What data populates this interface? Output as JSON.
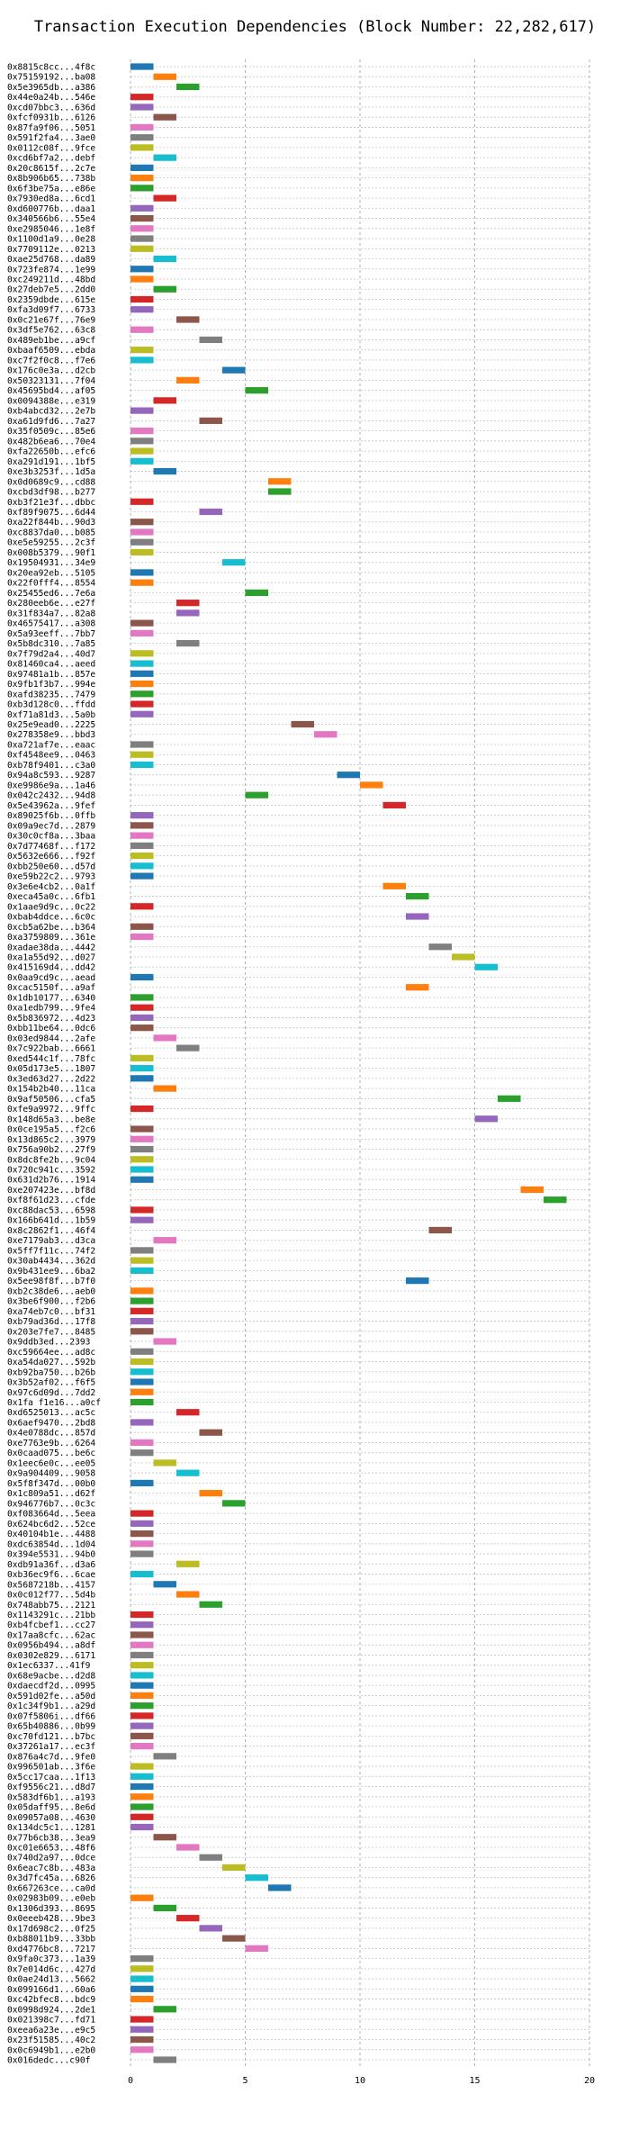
{
  "chart_data": {
    "type": "timeline",
    "title": "Transaction Execution Dependencies (Block Number: 22,282,617)",
    "xlim": [
      0,
      20
    ],
    "x_ticks": [
      0,
      5,
      10,
      15,
      20
    ],
    "grid": true,
    "palette": [
      "#1f77b4",
      "#ff7f0e",
      "#2ca02c",
      "#d62728",
      "#9467bd",
      "#8c564b",
      "#e377c2",
      "#7f7f7f",
      "#bcbd22",
      "#17becf"
    ],
    "rows": [
      {
        "label": "0x8815c8cc...4f8c",
        "start": 0,
        "end": 1
      },
      {
        "label": "0x75159192...ba08",
        "start": 1,
        "end": 2
      },
      {
        "label": "0x5e3965db...a386",
        "start": 2,
        "end": 3
      },
      {
        "label": "0x44e0a24b...546e",
        "start": 0,
        "end": 1
      },
      {
        "label": "0xcd07bbc3...636d",
        "start": 0,
        "end": 1
      },
      {
        "label": "0xfcf0931b...6126",
        "start": 1,
        "end": 2
      },
      {
        "label": "0x87fa9f06...5051",
        "start": 0,
        "end": 1
      },
      {
        "label": "0x591f2fa4...3ae0",
        "start": 0,
        "end": 1
      },
      {
        "label": "0x0112c08f...9fce",
        "start": 0,
        "end": 1
      },
      {
        "label": "0xcd6bf7a2...debf",
        "start": 1,
        "end": 2
      },
      {
        "label": "0x20c8615f...2c7e",
        "start": 0,
        "end": 1
      },
      {
        "label": "0x8b906b65...738b",
        "start": 0,
        "end": 1
      },
      {
        "label": "0x6f3be75a...e86e",
        "start": 0,
        "end": 1
      },
      {
        "label": "0x7930ed8a...6cd1",
        "start": 1,
        "end": 2
      },
      {
        "label": "0xd600776b...daa1",
        "start": 0,
        "end": 1
      },
      {
        "label": "0x340566b6...55e4",
        "start": 0,
        "end": 1
      },
      {
        "label": "0xe2985046...1e8f",
        "start": 0,
        "end": 1
      },
      {
        "label": "0x1100d1a9...0e28",
        "start": 0,
        "end": 1
      },
      {
        "label": "0x7709112e...0213",
        "start": 0,
        "end": 1
      },
      {
        "label": "0xae25d768...da89",
        "start": 1,
        "end": 2
      },
      {
        "label": "0x723fe874...1e99",
        "start": 0,
        "end": 1
      },
      {
        "label": "0xc249211d...48bd",
        "start": 0,
        "end": 1
      },
      {
        "label": "0x27deb7e5...2dd0",
        "start": 1,
        "end": 2
      },
      {
        "label": "0x2359dbde...615e",
        "start": 0,
        "end": 1
      },
      {
        "label": "0xfa3d09f7...6733",
        "start": 0,
        "end": 1
      },
      {
        "label": "0x0c21e67f...76e9",
        "start": 2,
        "end": 3
      },
      {
        "label": "0x3df5e762...63c8",
        "start": 0,
        "end": 1
      },
      {
        "label": "0x489eb1be...a9cf",
        "start": 3,
        "end": 4
      },
      {
        "label": "0xbaaf6509...ebda",
        "start": 0,
        "end": 1
      },
      {
        "label": "0xc7f2f0c8...f7e6",
        "start": 0,
        "end": 1
      },
      {
        "label": "0x176c0e3a...d2cb",
        "start": 4,
        "end": 5
      },
      {
        "label": "0x50323131...7f04",
        "start": 2,
        "end": 3
      },
      {
        "label": "0x45695bd4...af05",
        "start": 5,
        "end": 6
      },
      {
        "label": "0x0094388e...e319",
        "start": 1,
        "end": 2
      },
      {
        "label": "0xb4abcd32...2e7b",
        "start": 0,
        "end": 1
      },
      {
        "label": "0xa61d9fd6...7a27",
        "start": 3,
        "end": 4
      },
      {
        "label": "0x35f0509c...85e6",
        "start": 0,
        "end": 1
      },
      {
        "label": "0x482b6ea6...70e4",
        "start": 0,
        "end": 1
      },
      {
        "label": "0xfa22650b...efc6",
        "start": 0,
        "end": 1
      },
      {
        "label": "0xa291d191...1bf5",
        "start": 0,
        "end": 1
      },
      {
        "label": "0xe3b3253f...1d5a",
        "start": 1,
        "end": 2
      },
      {
        "label": "0x0d0689c9...cd88",
        "start": 6,
        "end": 7
      },
      {
        "label": "0xcbd3df98...b277",
        "start": 6,
        "end": 7
      },
      {
        "label": "0xb3f21e3f...dbbc",
        "start": 0,
        "end": 1
      },
      {
        "label": "0xf89f9075...6d44",
        "start": 3,
        "end": 4
      },
      {
        "label": "0xa22f844b...90d3",
        "start": 0,
        "end": 1
      },
      {
        "label": "0xc8837da0...b085",
        "start": 0,
        "end": 1
      },
      {
        "label": "0xe5e59255...2c3f",
        "start": 0,
        "end": 1
      },
      {
        "label": "0x008b5379...90f1",
        "start": 0,
        "end": 1
      },
      {
        "label": "0x19504931...34e9",
        "start": 4,
        "end": 5
      },
      {
        "label": "0x20ea92eb...5105",
        "start": 0,
        "end": 1
      },
      {
        "label": "0x22f0fff4...8554",
        "start": 0,
        "end": 1
      },
      {
        "label": "0x25455ed6...7e6a",
        "start": 5,
        "end": 6
      },
      {
        "label": "0x280eeb6e...e27f",
        "start": 2,
        "end": 3
      },
      {
        "label": "0x31f834a7...82a8",
        "start": 2,
        "end": 3
      },
      {
        "label": "0x46575417...a308",
        "start": 0,
        "end": 1
      },
      {
        "label": "0x5a93eeff...7bb7",
        "start": 0,
        "end": 1
      },
      {
        "label": "0x5b8dc310...7a85",
        "start": 2,
        "end": 3
      },
      {
        "label": "0x7f79d2a4...40d7",
        "start": 0,
        "end": 1
      },
      {
        "label": "0x81460ca4...aeed",
        "start": 0,
        "end": 1
      },
      {
        "label": "0x97481a1b...857e",
        "start": 0,
        "end": 1
      },
      {
        "label": "0x9fb1f3b7...994e",
        "start": 0,
        "end": 1
      },
      {
        "label": "0xafd38235...7479",
        "start": 0,
        "end": 1
      },
      {
        "label": "0xb3d128c0...ffdd",
        "start": 0,
        "end": 1
      },
      {
        "label": "0xf71a81d3...5a0b",
        "start": 0,
        "end": 1
      },
      {
        "label": "0x25e9ead0...2225",
        "start": 7,
        "end": 8
      },
      {
        "label": "0x278358e9...bbd3",
        "start": 8,
        "end": 9
      },
      {
        "label": "0xa721af7e...eaac",
        "start": 0,
        "end": 1
      },
      {
        "label": "0xf4548ee9...0463",
        "start": 0,
        "end": 1
      },
      {
        "label": "0xb78f9401...c3a0",
        "start": 0,
        "end": 1
      },
      {
        "label": "0x94a8c593...9287",
        "start": 9,
        "end": 10
      },
      {
        "label": "0xe9986e9a...1a46",
        "start": 10,
        "end": 11
      },
      {
        "label": "0x042c2432...94d8",
        "start": 5,
        "end": 6
      },
      {
        "label": "0x5e43962a...9fef",
        "start": 11,
        "end": 12
      },
      {
        "label": "0x89025f6b...0ffb",
        "start": 0,
        "end": 1
      },
      {
        "label": "0x09a9ec7d...2879",
        "start": 0,
        "end": 1
      },
      {
        "label": "0x30c0cf8a...3baa",
        "start": 0,
        "end": 1
      },
      {
        "label": "0x7d77468f...f172",
        "start": 0,
        "end": 1
      },
      {
        "label": "0x5632e666...f92f",
        "start": 0,
        "end": 1
      },
      {
        "label": "0xbb250e60...d57d",
        "start": 0,
        "end": 1
      },
      {
        "label": "0xe59b22c2...9793",
        "start": 0,
        "end": 1
      },
      {
        "label": "0x3e6e4cb2...0a1f",
        "start": 11,
        "end": 12
      },
      {
        "label": "0xeca45a0c...6fb1",
        "start": 12,
        "end": 13
      },
      {
        "label": "0x1aae9d9c...0c22",
        "start": 0,
        "end": 1
      },
      {
        "label": "0xbab4ddce...6c0c",
        "start": 12,
        "end": 13
      },
      {
        "label": "0xcb5a62be...b364",
        "start": 0,
        "end": 1
      },
      {
        "label": "0xa3759809...361e",
        "start": 0,
        "end": 1
      },
      {
        "label": "0xadae38da...4442",
        "start": 13,
        "end": 14
      },
      {
        "label": "0xa1a55d92...d027",
        "start": 14,
        "end": 15
      },
      {
        "label": "0x415169d4...dd42",
        "start": 15,
        "end": 16
      },
      {
        "label": "0x0aa9cd9c...aead",
        "start": 0,
        "end": 1
      },
      {
        "label": "0xcac5150f...a9af",
        "start": 12,
        "end": 13
      },
      {
        "label": "0x1db10177...6340",
        "start": 0,
        "end": 1
      },
      {
        "label": "0xa1edb799...9fe4",
        "start": 0,
        "end": 1
      },
      {
        "label": "0x5b836972...4d23",
        "start": 0,
        "end": 1
      },
      {
        "label": "0xbb11be64...0dc6",
        "start": 0,
        "end": 1
      },
      {
        "label": "0x03ed9844...2afe",
        "start": 1,
        "end": 2
      },
      {
        "label": "0x7c922bab...6661",
        "start": 2,
        "end": 3
      },
      {
        "label": "0xed544c1f...78fc",
        "start": 0,
        "end": 1
      },
      {
        "label": "0x05d173e5...1807",
        "start": 0,
        "end": 1
      },
      {
        "label": "0x3ed63d27...2d22",
        "start": 0,
        "end": 1
      },
      {
        "label": "0x154b2b40...11ca",
        "start": 1,
        "end": 2
      },
      {
        "label": "0x9af50506...cfa5",
        "start": 16,
        "end": 17
      },
      {
        "label": "0xfe9a9972...9ffc",
        "start": 0,
        "end": 1
      },
      {
        "label": "0x148d65a3...be8e",
        "start": 15,
        "end": 16
      },
      {
        "label": "0x0ce195a5...f2c6",
        "start": 0,
        "end": 1
      },
      {
        "label": "0x13d865c2...3979",
        "start": 0,
        "end": 1
      },
      {
        "label": "0x756a90b2...27f9",
        "start": 0,
        "end": 1
      },
      {
        "label": "0x8dc8fe2b...9c04",
        "start": 0,
        "end": 1
      },
      {
        "label": "0x720c941c...3592",
        "start": 0,
        "end": 1
      },
      {
        "label": "0x631d2b76...1914",
        "start": 0,
        "end": 1
      },
      {
        "label": "0xe207423e...bf8d",
        "start": 17,
        "end": 18
      },
      {
        "label": "0xf8f61d23...cfde",
        "start": 18,
        "end": 19
      },
      {
        "label": "0xc88dac53...6598",
        "start": 0,
        "end": 1
      },
      {
        "label": "0x166b641d...1b59",
        "start": 0,
        "end": 1
      },
      {
        "label": "0x8c2862f1...46f4",
        "start": 13,
        "end": 14
      },
      {
        "label": "0xe7179ab3...d3ca",
        "start": 1,
        "end": 2
      },
      {
        "label": "0x5ff7f11c...74f2",
        "start": 0,
        "end": 1
      },
      {
        "label": "0x30ab4434...362d",
        "start": 0,
        "end": 1
      },
      {
        "label": "0x9b431ee9...6ba2",
        "start": 0,
        "end": 1
      },
      {
        "label": "0x5ee98f8f...b7f0",
        "start": 12,
        "end": 13
      },
      {
        "label": "0xb2c38de6...aeb0",
        "start": 0,
        "end": 1
      },
      {
        "label": "0x3be6f900...f2b6",
        "start": 0,
        "end": 1
      },
      {
        "label": "0xa74eb7c0...bf31",
        "start": 0,
        "end": 1
      },
      {
        "label": "0xb79ad36d...17f8",
        "start": 0,
        "end": 1
      },
      {
        "label": "0x203e7fe7...8485",
        "start": 0,
        "end": 1
      },
      {
        "label": "0x9ddb3ed...2393",
        "start": 1,
        "end": 2
      },
      {
        "label": "0xc59664ee...ad8c",
        "start": 0,
        "end": 1
      },
      {
        "label": "0xa54da027...592b",
        "start": 0,
        "end": 1
      },
      {
        "label": "0xb92ba750...b26b",
        "start": 0,
        "end": 1
      },
      {
        "label": "0x3b52af02...f6f5",
        "start": 0,
        "end": 1
      },
      {
        "label": "0x97c6d09d...7dd2",
        "start": 0,
        "end": 1
      },
      {
        "label": "0x1fa f1e16...a0cf",
        "start": 0,
        "end": 1
      },
      {
        "label": "0xd6525013...ac5c",
        "start": 2,
        "end": 3
      },
      {
        "label": "0x6aef9470...2bd8",
        "start": 0,
        "end": 1
      },
      {
        "label": "0x4e0788dc...857d",
        "start": 3,
        "end": 4
      },
      {
        "label": "0xe7763e9b...6264",
        "start": 0,
        "end": 1
      },
      {
        "label": "0x0caad075...be6c",
        "start": 0,
        "end": 1
      },
      {
        "label": "0x1eec6e0c...ee05",
        "start": 1,
        "end": 2
      },
      {
        "label": "0x9a904409...9058",
        "start": 2,
        "end": 3
      },
      {
        "label": "0x5f8f347d...00b0",
        "start": 0,
        "end": 1
      },
      {
        "label": "0x1c809a51...d62f",
        "start": 3,
        "end": 4
      },
      {
        "label": "0x946776b7...0c3c",
        "start": 4,
        "end": 5
      },
      {
        "label": "0xf083664d...5eea",
        "start": 0,
        "end": 1
      },
      {
        "label": "0x624bc6d2...52ce",
        "start": 0,
        "end": 1
      },
      {
        "label": "0x40104b1e...4488",
        "start": 0,
        "end": 1
      },
      {
        "label": "0xdc63854d...1d04",
        "start": 0,
        "end": 1
      },
      {
        "label": "0x394e5531...94b0",
        "start": 0,
        "end": 1
      },
      {
        "label": "0xdb91a36f...d3a6",
        "start": 2,
        "end": 3
      },
      {
        "label": "0xb36ec9f6...6cae",
        "start": 0,
        "end": 1
      },
      {
        "label": "0x5687218b...4157",
        "start": 1,
        "end": 2
      },
      {
        "label": "0x0c012f77...5d4b",
        "start": 2,
        "end": 3
      },
      {
        "label": "0x748abb75...2121",
        "start": 3,
        "end": 4
      },
      {
        "label": "0x1143291c...21bb",
        "start": 0,
        "end": 1
      },
      {
        "label": "0xb4fcbef1...cc27",
        "start": 0,
        "end": 1
      },
      {
        "label": "0x17aa8cfc...62ac",
        "start": 0,
        "end": 1
      },
      {
        "label": "0x0956b494...a8df",
        "start": 0,
        "end": 1
      },
      {
        "label": "0x0302e829...6171",
        "start": 0,
        "end": 1
      },
      {
        "label": "0x1ec6337...41f9",
        "start": 0,
        "end": 1
      },
      {
        "label": "0x68e9acbe...d2d8",
        "start": 0,
        "end": 1
      },
      {
        "label": "0xdaecdf2d...0995",
        "start": 0,
        "end": 1
      },
      {
        "label": "0x591d02fe...a50d",
        "start": 0,
        "end": 1
      },
      {
        "label": "0x1c34f9b1...a29d",
        "start": 0,
        "end": 1
      },
      {
        "label": "0x07f5806i...df66",
        "start": 0,
        "end": 1
      },
      {
        "label": "0x65b40886...0b99",
        "start": 0,
        "end": 1
      },
      {
        "label": "0xc70fd121...b7bc",
        "start": 0,
        "end": 1
      },
      {
        "label": "0x37261a17...ec3f",
        "start": 0,
        "end": 1
      },
      {
        "label": "0x876a4c7d...9fe0",
        "start": 1,
        "end": 2
      },
      {
        "label": "0x996501ab...3f6e",
        "start": 0,
        "end": 1
      },
      {
        "label": "0x5cc17caa...1f13",
        "start": 0,
        "end": 1
      },
      {
        "label": "0xf9556c21...d8d7",
        "start": 0,
        "end": 1
      },
      {
        "label": "0x583df6b1...a193",
        "start": 0,
        "end": 1
      },
      {
        "label": "0x05daff95...8e6d",
        "start": 0,
        "end": 1
      },
      {
        "label": "0x09057a08...4630",
        "start": 0,
        "end": 1
      },
      {
        "label": "0x134dc5c1...1281",
        "start": 0,
        "end": 1
      },
      {
        "label": "0x77b6cb38...3ea9",
        "start": 1,
        "end": 2
      },
      {
        "label": "0xc01e6653...48f6",
        "start": 2,
        "end": 3
      },
      {
        "label": "0x740d2a97...0dce",
        "start": 3,
        "end": 4
      },
      {
        "label": "0x6eac7c8b...483a",
        "start": 4,
        "end": 5
      },
      {
        "label": "0x3d7fc45a...6826",
        "start": 5,
        "end": 6
      },
      {
        "label": "0x667263ce...ca0d",
        "start": 6,
        "end": 7
      },
      {
        "label": "0x02983b09...e0eb",
        "start": 0,
        "end": 1
      },
      {
        "label": "0x1306d393...8695",
        "start": 1,
        "end": 2
      },
      {
        "label": "0x0eeeb428...9be3",
        "start": 2,
        "end": 3
      },
      {
        "label": "0x17d698c2...0f25",
        "start": 3,
        "end": 4
      },
      {
        "label": "0xb88011b9...33bb",
        "start": 4,
        "end": 5
      },
      {
        "label": "0xd4776bc8...7217",
        "start": 5,
        "end": 6
      },
      {
        "label": "0x9fa0c373...1a39",
        "start": 0,
        "end": 1
      },
      {
        "label": "0x7e014d6c...427d",
        "start": 0,
        "end": 1
      },
      {
        "label": "0x0ae24d13...5662",
        "start": 0,
        "end": 1
      },
      {
        "label": "0x099166d1...60a6",
        "start": 0,
        "end": 1
      },
      {
        "label": "0xc42bfec8...bdc9",
        "start": 0,
        "end": 1
      },
      {
        "label": "0x0998d924...2de1",
        "start": 1,
        "end": 2
      },
      {
        "label": "0x021398c7...fd71",
        "start": 0,
        "end": 1
      },
      {
        "label": "0xeea6a23e...e9c5",
        "start": 0,
        "end": 1
      },
      {
        "label": "0x23f51585...40c2",
        "start": 0,
        "end": 1
      },
      {
        "label": "0x0c6949b1...e2b0",
        "start": 0,
        "end": 1
      },
      {
        "label": "0x016dedc...c90f",
        "start": 1,
        "end": 2
      }
    ]
  }
}
